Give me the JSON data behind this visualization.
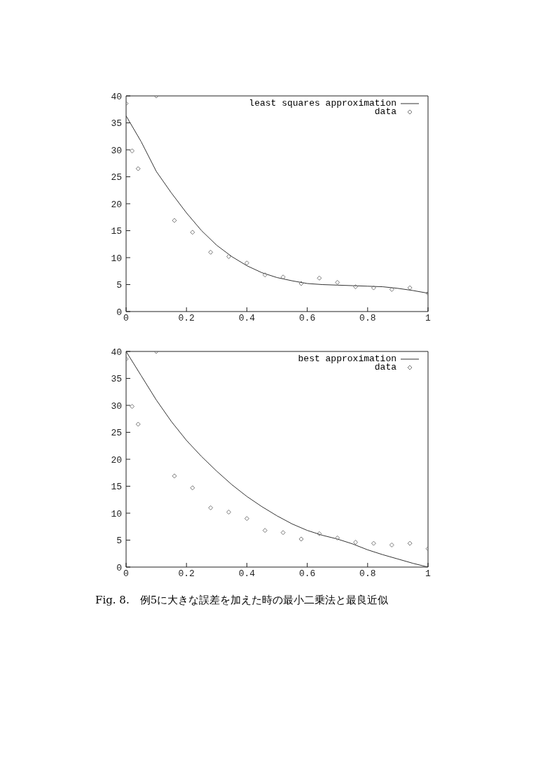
{
  "chart_data": [
    {
      "type": "line",
      "legend": "top right",
      "grid": false,
      "xlim": [
        0,
        1
      ],
      "ylim": [
        0,
        40
      ],
      "xticks": [
        0,
        0.2,
        0.4,
        0.6,
        0.8,
        1
      ],
      "yticks": [
        0,
        5,
        10,
        15,
        20,
        25,
        30,
        35,
        40
      ],
      "series": [
        {
          "name": "least squares approximation",
          "color": "#333333",
          "line_style": "solid",
          "marker": "none",
          "x": [
            0,
            0.05,
            0.1,
            0.15,
            0.2,
            0.25,
            0.3,
            0.35,
            0.4,
            0.45,
            0.5,
            0.55,
            0.6,
            0.65,
            0.7,
            0.75,
            0.8,
            0.85,
            0.9,
            0.95,
            1
          ],
          "values": [
            36.3,
            31.5,
            26,
            22,
            18.3,
            15,
            12.3,
            10.2,
            8.5,
            7.2,
            6.3,
            5.7,
            5.2,
            5,
            4.9,
            4.8,
            4.7,
            4.6,
            4.3,
            3.9,
            3.4
          ]
        },
        {
          "name": "data",
          "type": "scatter",
          "color": "#777777",
          "marker": "diamond",
          "x": [
            0,
            0.02,
            0.04,
            0.1,
            0.16,
            0.22,
            0.28,
            0.34,
            0.4,
            0.46,
            0.52,
            0.58,
            0.64,
            0.7,
            0.76,
            0.82,
            0.88,
            0.94,
            1
          ],
          "values": [
            38.6,
            29.8,
            26.5,
            40,
            16.9,
            14.7,
            11,
            10.2,
            9,
            6.8,
            6.4,
            5.2,
            6.2,
            5.4,
            4.6,
            4.4,
            4.1,
            4.4,
            3.4
          ]
        }
      ]
    },
    {
      "type": "line",
      "legend": "top right",
      "grid": false,
      "xlim": [
        0,
        1
      ],
      "ylim": [
        0,
        40
      ],
      "xticks": [
        0,
        0.2,
        0.4,
        0.6,
        0.8,
        1
      ],
      "yticks": [
        0,
        5,
        10,
        15,
        20,
        25,
        30,
        35,
        40
      ],
      "series": [
        {
          "name": "best approximation",
          "color": "#333333",
          "line_style": "solid",
          "marker": "none",
          "x": [
            0,
            0.05,
            0.1,
            0.15,
            0.2,
            0.25,
            0.3,
            0.35,
            0.4,
            0.45,
            0.5,
            0.55,
            0.6,
            0.65,
            0.7,
            0.75,
            0.8,
            0.85,
            0.9,
            0.95,
            1
          ],
          "values": [
            40,
            35.5,
            31,
            27,
            23.5,
            20.5,
            17.8,
            15.3,
            13.1,
            11.2,
            9.5,
            8,
            6.8,
            5.9,
            5.2,
            4.3,
            3.2,
            2.3,
            1.5,
            0.7,
            0
          ]
        },
        {
          "name": "data",
          "type": "scatter",
          "color": "#777777",
          "marker": "diamond",
          "x": [
            0,
            0.02,
            0.04,
            0.1,
            0.16,
            0.22,
            0.28,
            0.34,
            0.4,
            0.46,
            0.52,
            0.58,
            0.64,
            0.7,
            0.76,
            0.82,
            0.88,
            0.94,
            1
          ],
          "values": [
            38.6,
            29.8,
            26.5,
            40,
            16.9,
            14.7,
            11,
            10.2,
            9,
            6.8,
            6.4,
            5.2,
            6.2,
            5.4,
            4.6,
            4.4,
            4.1,
            4.4,
            3.4
          ]
        }
      ],
      "annotations": [
        "Fig. 8.　例5に大きな誤差を加えた時の最小二乗法と最良近似"
      ]
    }
  ]
}
